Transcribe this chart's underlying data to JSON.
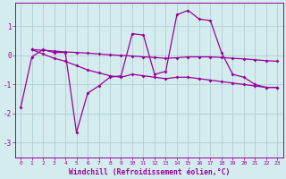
{
  "x": [
    0,
    1,
    2,
    3,
    4,
    5,
    6,
    7,
    8,
    9,
    10,
    11,
    12,
    13,
    14,
    15,
    16,
    17,
    18,
    19,
    20,
    21,
    22,
    23
  ],
  "line_spiky": [
    -1.8,
    -0.05,
    0.2,
    0.1,
    0.1,
    -2.65,
    -1.3,
    -1.05,
    -0.75,
    -0.7,
    0.75,
    0.7,
    -0.65,
    -0.55,
    1.4,
    1.55,
    1.25,
    1.2,
    0.1,
    -0.65,
    -0.75,
    -1.0,
    -1.1,
    -1.1
  ],
  "line_upper": [
    null,
    0.2,
    0.18,
    0.15,
    0.12,
    0.1,
    0.08,
    0.05,
    0.02,
    0.0,
    -0.02,
    -0.05,
    -0.07,
    -0.1,
    -0.08,
    -0.05,
    -0.05,
    -0.05,
    -0.07,
    -0.1,
    -0.12,
    -0.15,
    -0.18,
    -0.2
  ],
  "line_lower": [
    null,
    0.2,
    0.05,
    -0.1,
    -0.2,
    -0.35,
    -0.5,
    -0.6,
    -0.7,
    -0.75,
    -0.65,
    -0.7,
    -0.75,
    -0.8,
    -0.75,
    -0.75,
    -0.8,
    -0.85,
    -0.9,
    -0.95,
    -1.0,
    -1.05,
    -1.1,
    -1.1
  ],
  "bg_color": "#d4ecee",
  "line_color": "#990099",
  "grid_color": "#b0ced2",
  "axis_color": "#990099",
  "xlabel": "Windchill (Refroidissement éolien,°C)",
  "ylim": [
    -3.5,
    1.8
  ],
  "xlim": [
    -0.5,
    23.5
  ],
  "yticks": [
    -3,
    -2,
    -1,
    0,
    1
  ],
  "xticks": [
    0,
    1,
    2,
    3,
    4,
    5,
    6,
    7,
    8,
    9,
    10,
    11,
    12,
    13,
    14,
    15,
    16,
    17,
    18,
    19,
    20,
    21,
    22,
    23
  ]
}
